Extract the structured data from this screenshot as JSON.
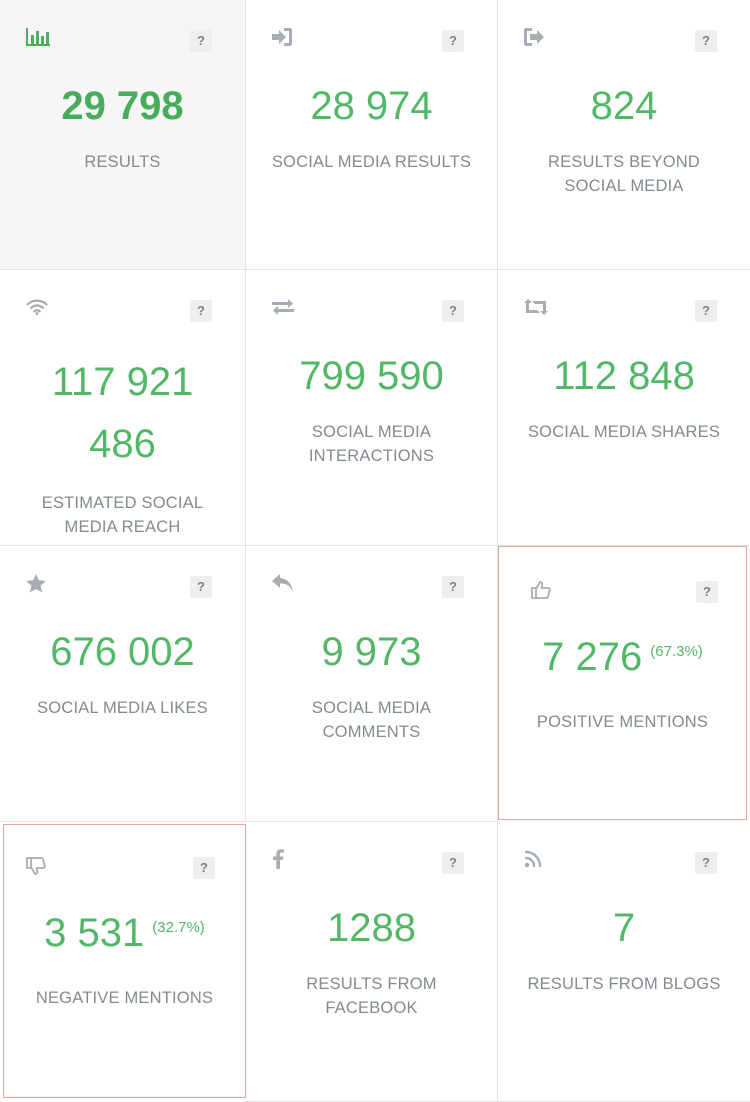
{
  "help_label": "?",
  "colors": {
    "value_green": "#52b867",
    "icon_grey": "#a6adb4",
    "highlight_border": "#e7a79e"
  },
  "cards": [
    {
      "icon": "bar-chart-icon",
      "value": "29 798",
      "label": "RESULTS"
    },
    {
      "icon": "sign-in-icon",
      "value": "28 974",
      "label": "SOCIAL MEDIA RESULTS"
    },
    {
      "icon": "sign-out-icon",
      "value": "824",
      "label": "RESULTS BEYOND SOCIAL MEDIA"
    },
    {
      "icon": "wifi-icon",
      "value": "117 921 486",
      "label": "ESTIMATED SOCIAL MEDIA REACH"
    },
    {
      "icon": "exchange-icon",
      "value": "799 590",
      "label": "SOCIAL MEDIA INTERACTIONS"
    },
    {
      "icon": "retweet-icon",
      "value": "112 848",
      "label": "SOCIAL MEDIA SHARES"
    },
    {
      "icon": "star-icon",
      "value": "676 002",
      "label": "SOCIAL MEDIA LIKES"
    },
    {
      "icon": "reply-icon",
      "value": "9 973",
      "label": "SOCIAL MEDIA COMMENTS"
    },
    {
      "icon": "thumbs-up-icon",
      "value": "7 276",
      "percent": "(67.3%)",
      "label": "POSITIVE MENTIONS"
    },
    {
      "icon": "thumbs-down-icon",
      "value": "3 531",
      "percent": "(32.7%)",
      "label": "NEGATIVE MENTIONS"
    },
    {
      "icon": "facebook-icon",
      "value": "1288",
      "label": "RESULTS FROM FACEBOOK"
    },
    {
      "icon": "rss-icon",
      "value": "7",
      "label": "RESULTS FROM BLOGS"
    }
  ]
}
